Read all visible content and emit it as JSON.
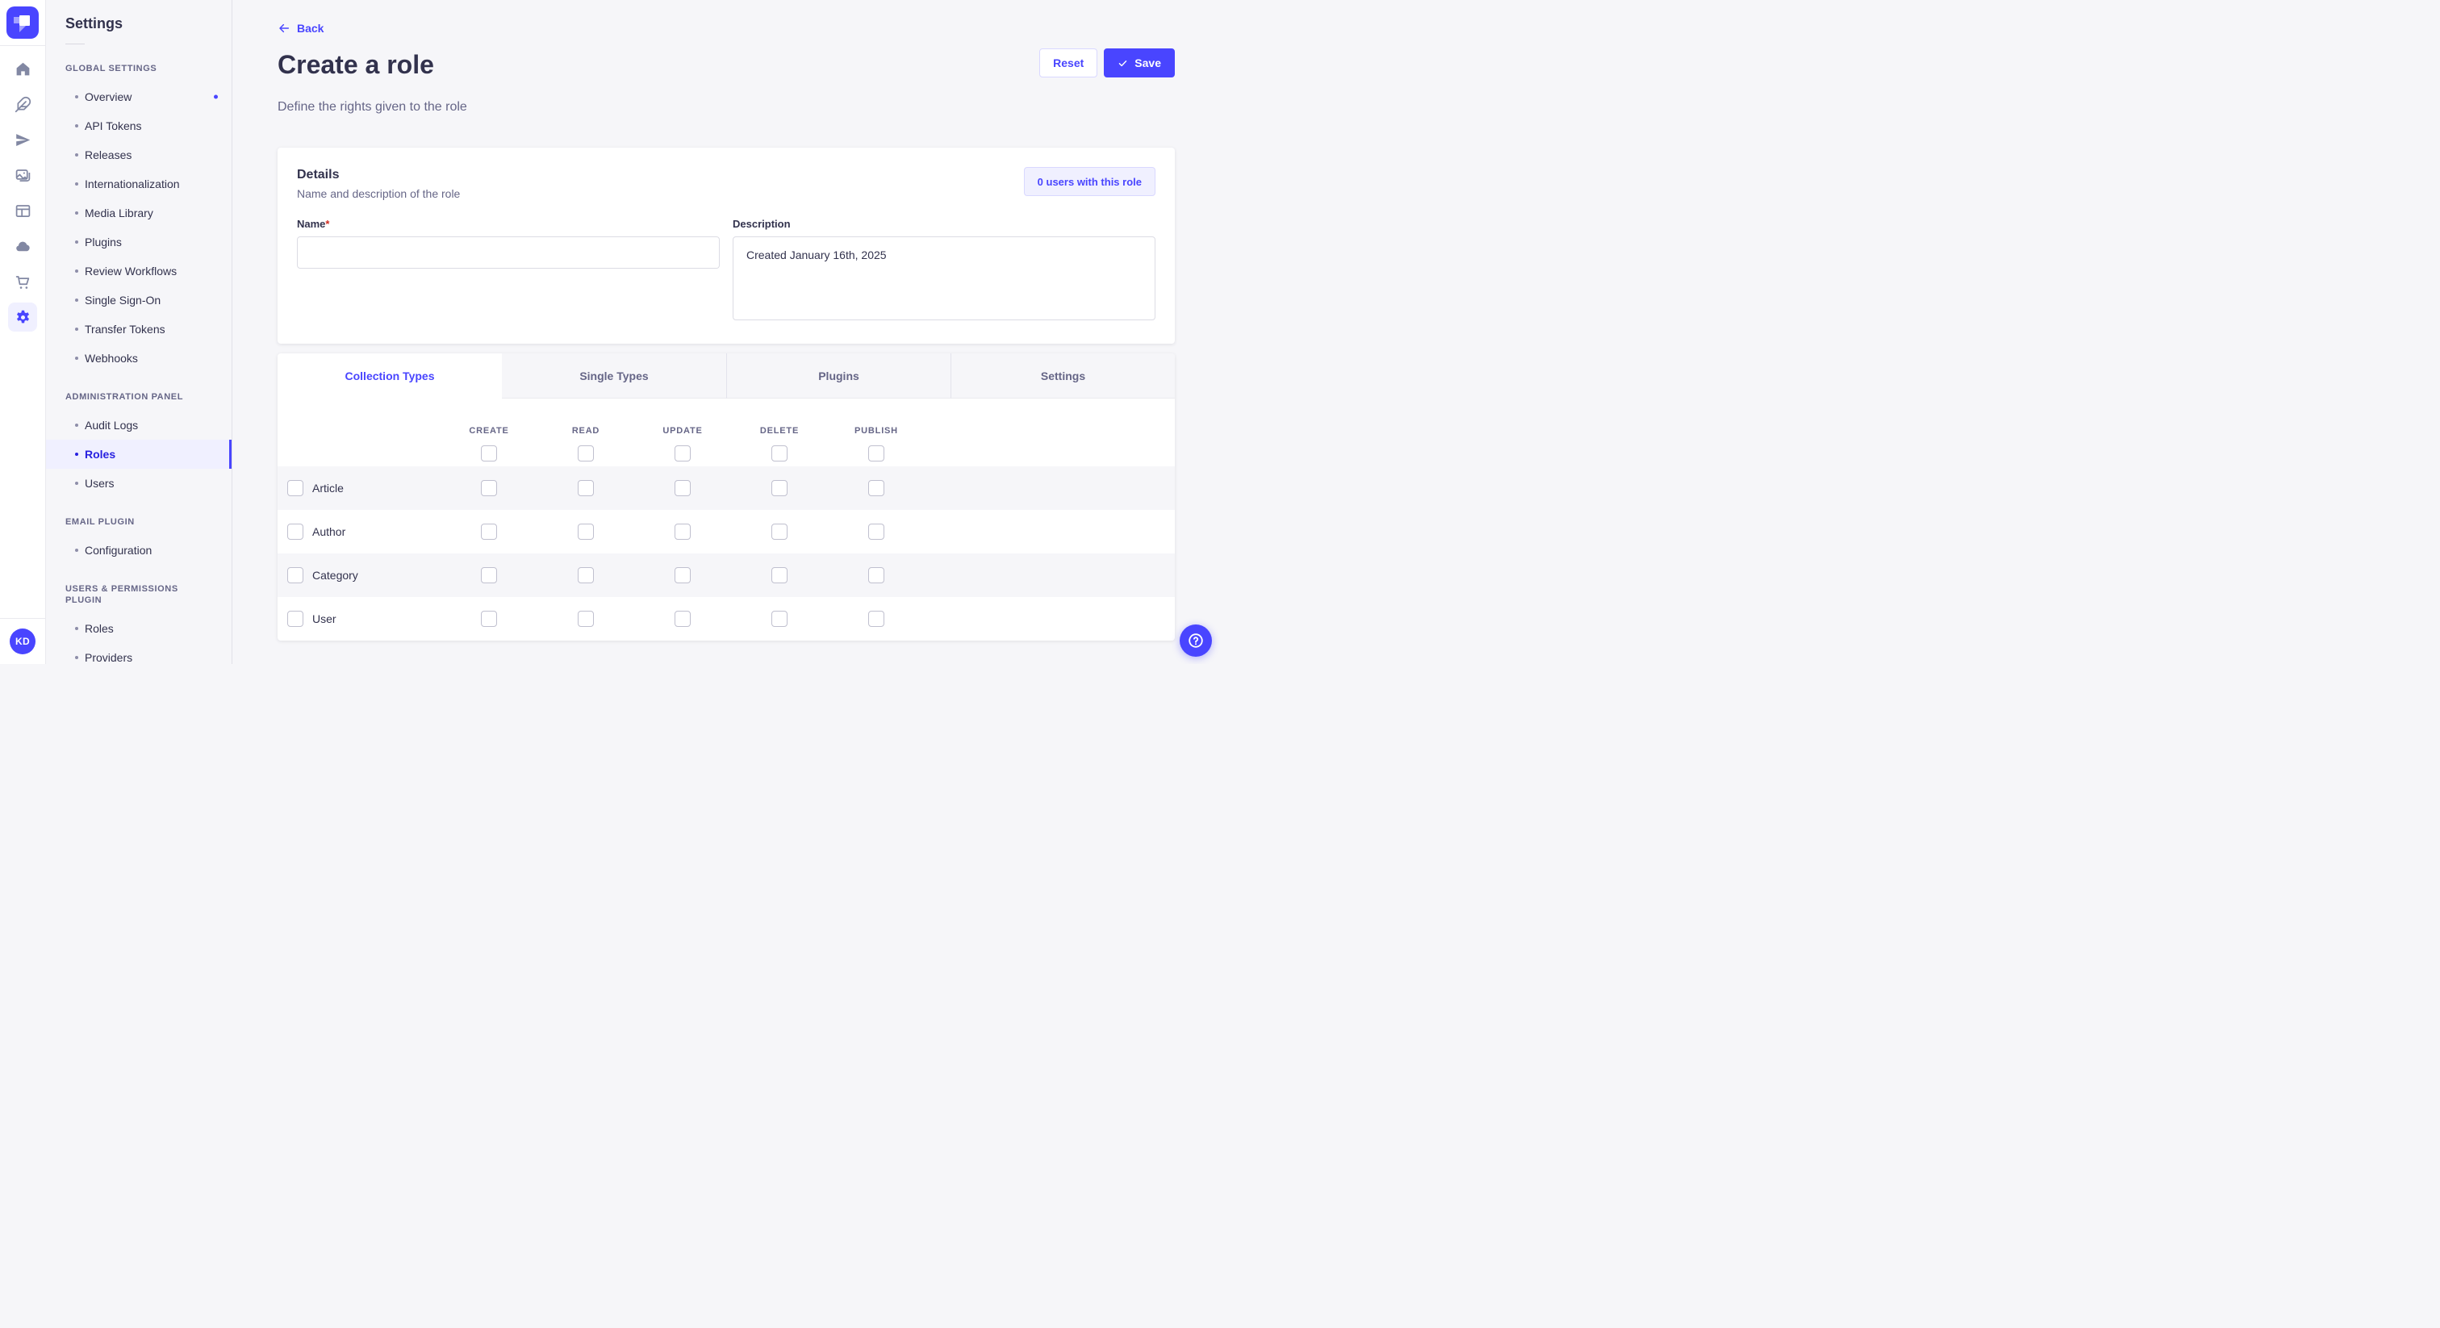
{
  "colors": {
    "primary": "#4945ff",
    "primary_dark": "#271fe0",
    "selected_bg": "#f0f0ff",
    "page_bg": "#f6f6f9",
    "border": "#eaeaef",
    "text": "#32324d",
    "muted": "#666687",
    "required": "#d02b20"
  },
  "sidebar_rail": {
    "logo_icon": "strapi-logo",
    "items": [
      {
        "icon": "home-icon",
        "selected": false
      },
      {
        "icon": "feather-icon",
        "selected": false
      },
      {
        "icon": "paper-plane-icon",
        "selected": false
      },
      {
        "icon": "media-library-icon",
        "selected": false
      },
      {
        "icon": "layout-icon",
        "selected": false
      },
      {
        "icon": "cloud-icon",
        "selected": false
      },
      {
        "icon": "cart-icon",
        "selected": false
      },
      {
        "icon": "gear-icon",
        "selected": true
      }
    ],
    "avatar_initials": "KD"
  },
  "settings_nav": {
    "title": "Settings",
    "sections": [
      {
        "label": "GLOBAL SETTINGS",
        "items": [
          {
            "label": "Overview",
            "notification": true
          },
          {
            "label": "API Tokens"
          },
          {
            "label": "Releases"
          },
          {
            "label": "Internationalization"
          },
          {
            "label": "Media Library"
          },
          {
            "label": "Plugins"
          },
          {
            "label": "Review Workflows"
          },
          {
            "label": "Single Sign-On"
          },
          {
            "label": "Transfer Tokens"
          },
          {
            "label": "Webhooks"
          }
        ]
      },
      {
        "label": "ADMINISTRATION PANEL",
        "items": [
          {
            "label": "Audit Logs"
          },
          {
            "label": "Roles",
            "selected": true
          },
          {
            "label": "Users"
          }
        ]
      },
      {
        "label": "EMAIL PLUGIN",
        "items": [
          {
            "label": "Configuration"
          }
        ]
      },
      {
        "label": "USERS & PERMISSIONS PLUGIN",
        "items": [
          {
            "label": "Roles"
          },
          {
            "label": "Providers"
          }
        ]
      }
    ]
  },
  "header": {
    "back_label": "Back",
    "title": "Create a role",
    "subtitle": "Define the rights given to the role",
    "reset_label": "Reset",
    "save_label": "Save",
    "save_icon": "check-icon",
    "back_icon": "arrow-left-icon"
  },
  "details": {
    "title": "Details",
    "subtitle": "Name and description of the role",
    "users_count_button": "0 users with this role",
    "name_label": "Name",
    "required_marker": "*",
    "name_value": "",
    "description_label": "Description",
    "description_value": "Created January 16th, 2025"
  },
  "permissions": {
    "tabs": [
      {
        "label": "Collection Types",
        "active": true
      },
      {
        "label": "Single Types",
        "active": false
      },
      {
        "label": "Plugins",
        "active": false
      },
      {
        "label": "Settings",
        "active": false
      }
    ],
    "columns": [
      "CREATE",
      "READ",
      "UPDATE",
      "DELETE",
      "PUBLISH"
    ],
    "select_all_checked": [
      false,
      false,
      false,
      false,
      false
    ],
    "rows": [
      {
        "label": "Article",
        "row_checked": false,
        "checked": [
          false,
          false,
          false,
          false,
          false
        ]
      },
      {
        "label": "Author",
        "row_checked": false,
        "checked": [
          false,
          false,
          false,
          false,
          false
        ]
      },
      {
        "label": "Category",
        "row_checked": false,
        "checked": [
          false,
          false,
          false,
          false,
          false
        ]
      },
      {
        "label": "User",
        "row_checked": false,
        "checked": [
          false,
          false,
          false,
          false,
          false
        ]
      }
    ]
  },
  "help": {
    "icon": "question-mark-icon"
  }
}
